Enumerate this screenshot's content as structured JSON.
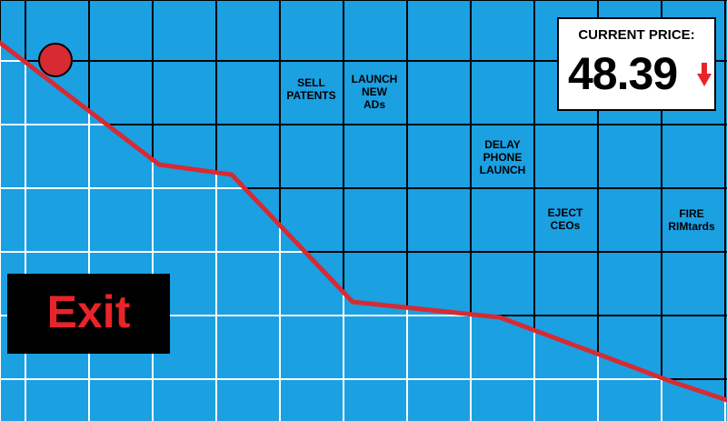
{
  "game": {
    "events": [
      {
        "label": "SELL\nPATENTS"
      },
      {
        "label": "LAUNCH\nNEW\nADs"
      },
      {
        "label": "DELAY\nPHONE\nLAUNCH"
      },
      {
        "label": "EJECT\nCEOs"
      },
      {
        "label": "FIRE\nRIMtards"
      }
    ],
    "price": {
      "title": "CURRENT PRICE:",
      "value": "48.39",
      "trend": "down",
      "arrow_icon": "down-arrow-icon"
    },
    "exit": {
      "label": "Exit"
    },
    "player_icon": "red-circle-icon"
  },
  "colors": {
    "background": "#1ba0e2",
    "line": "#d62b33",
    "grid_dark": "#000000",
    "grid_light": "#ffffff",
    "exit_text": "#e8242a",
    "exit_bg": "#000000",
    "arrow": "#e8242a"
  }
}
